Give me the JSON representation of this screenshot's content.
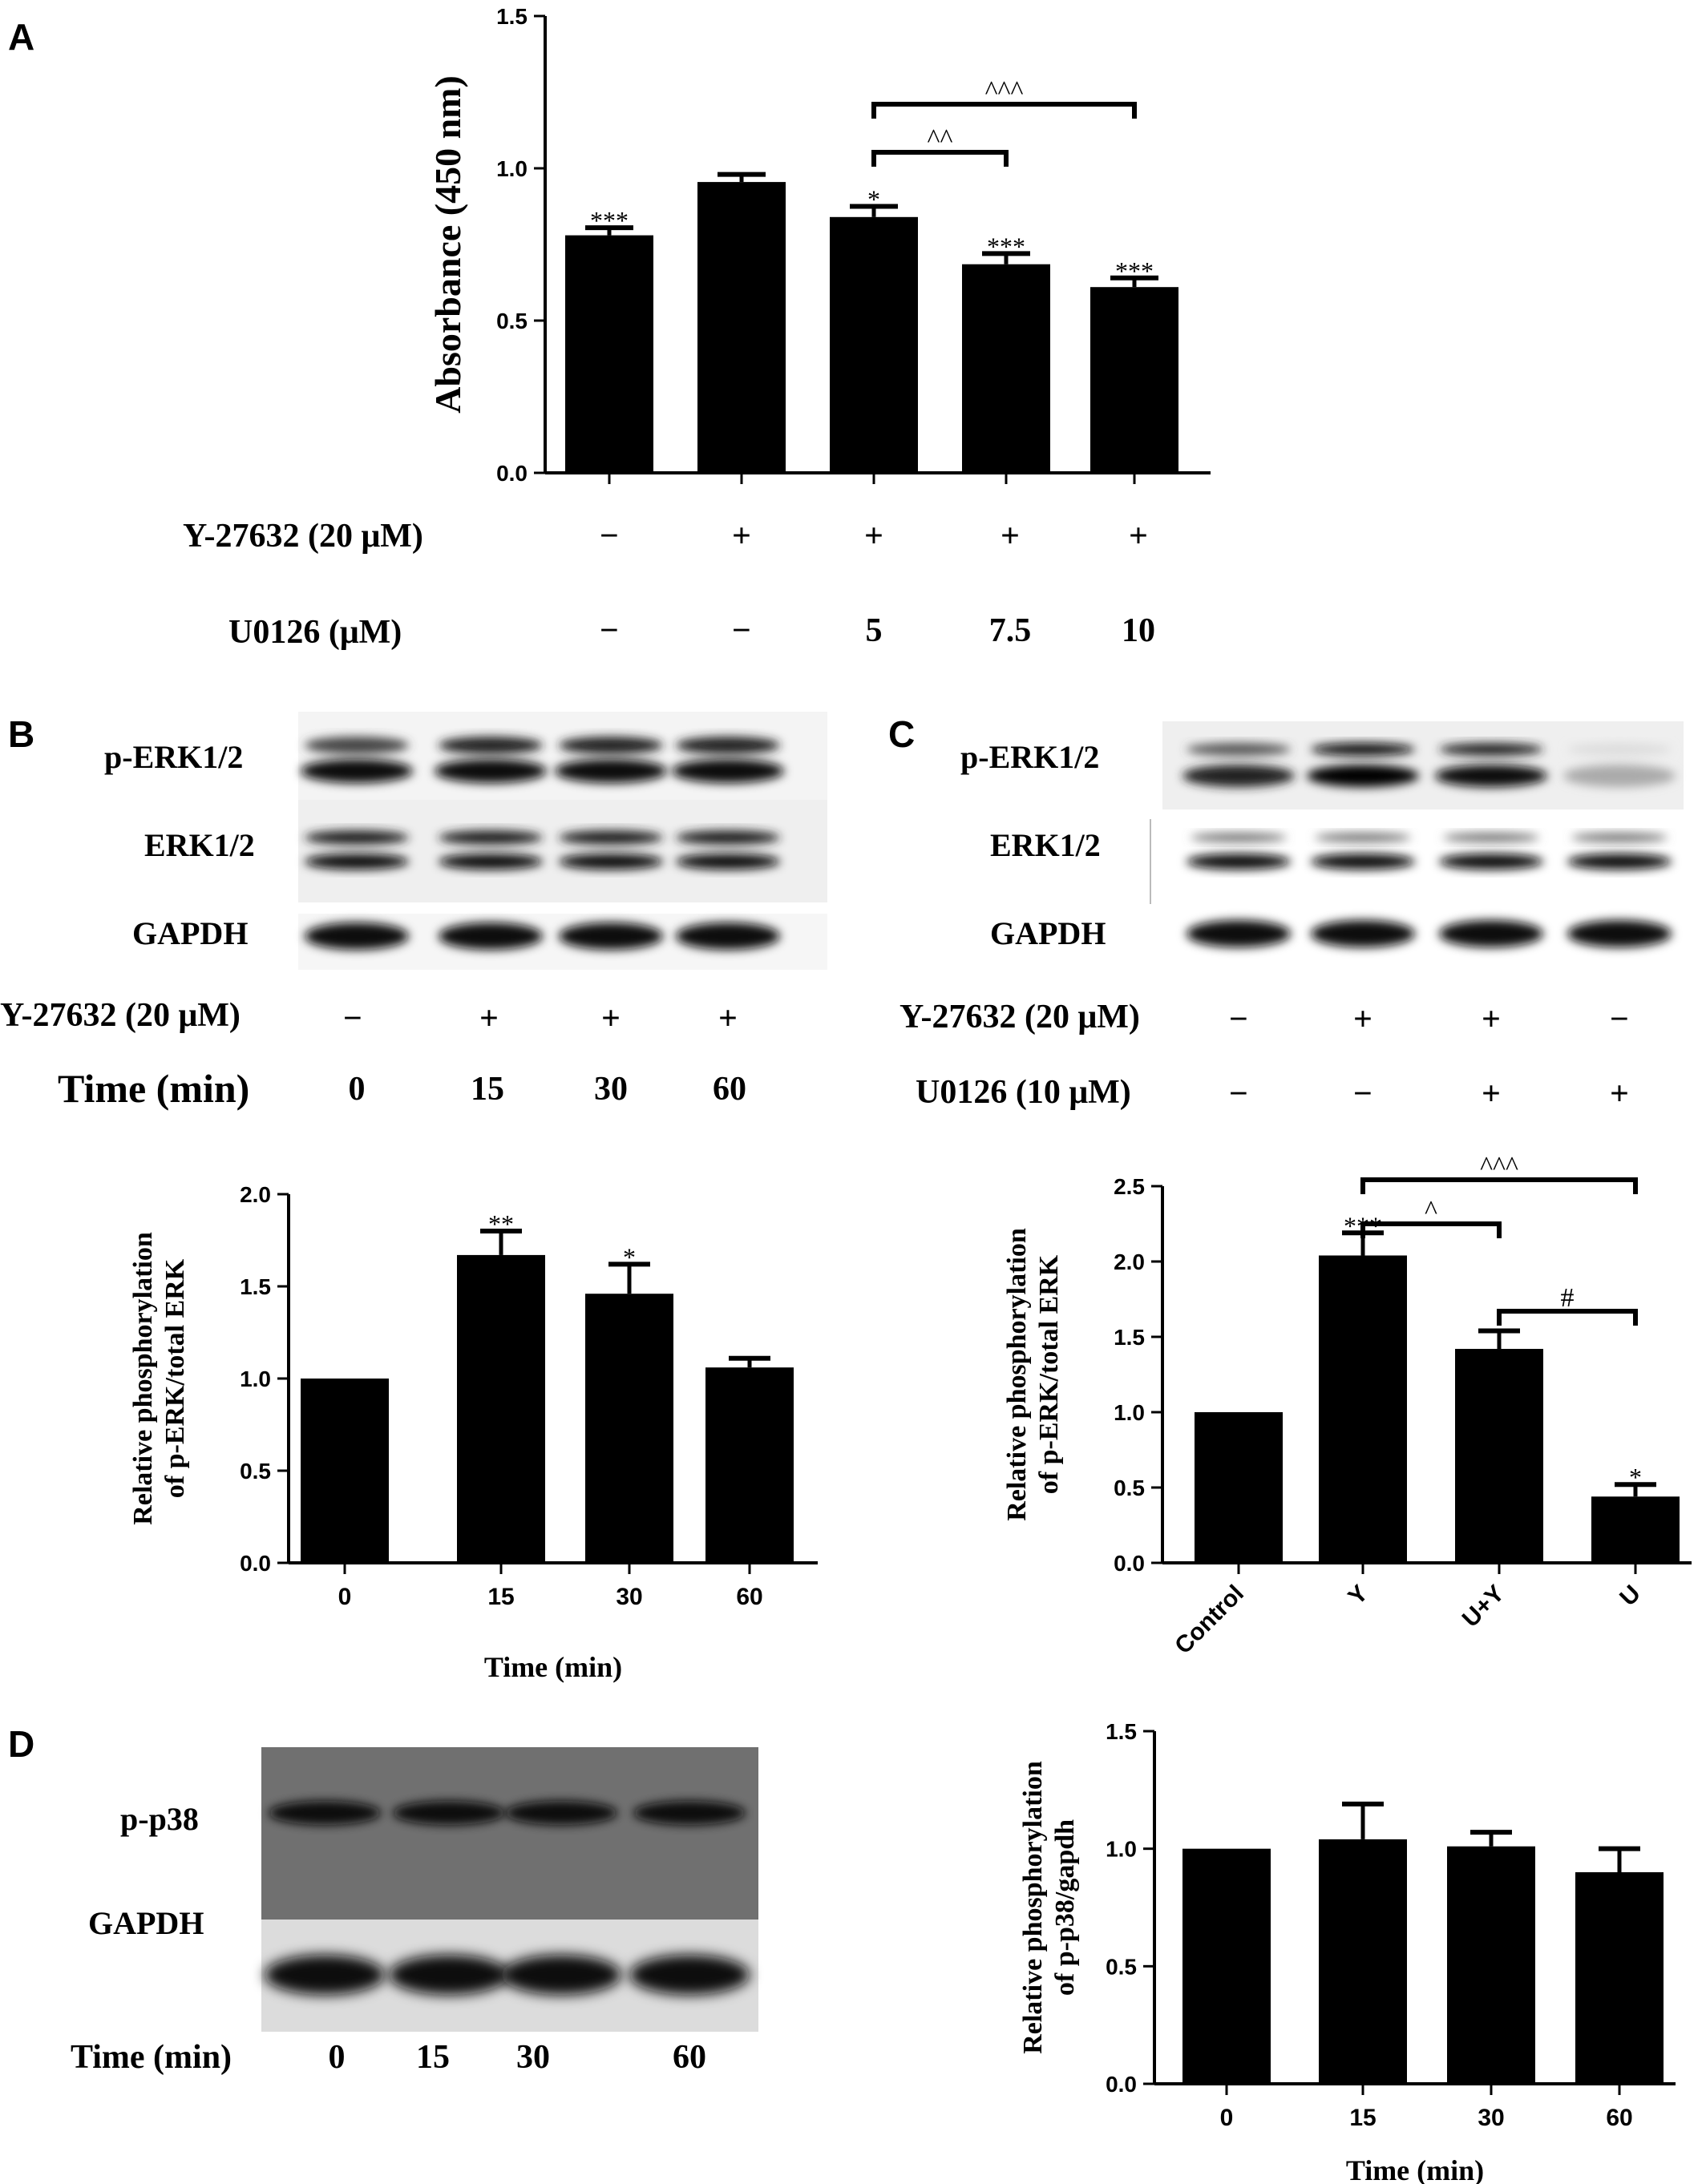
{
  "panels": {
    "A": {
      "letter": "A",
      "conditions": [
        {
          "label": "Y-27632 (20 μM)",
          "values": [
            "−",
            "+",
            "+",
            "+",
            "+"
          ]
        },
        {
          "label": "U0126 (μM)",
          "values": [
            "−",
            "−",
            "5",
            "7.5",
            "10"
          ]
        }
      ]
    },
    "B": {
      "letter": "B",
      "blot_labels": [
        "p-ERK1/2",
        "ERK1/2",
        "GAPDH"
      ],
      "conditions": [
        {
          "label": "Y-27632 (20 μM)",
          "values": [
            "−",
            "+",
            "+",
            "+"
          ]
        },
        {
          "label": "Time (min)",
          "values": [
            "0",
            "15",
            "30",
            "60"
          ]
        }
      ]
    },
    "C": {
      "letter": "C",
      "blot_labels": [
        "p-ERK1/2",
        "ERK1/2",
        "GAPDH"
      ],
      "conditions": [
        {
          "label": "Y-27632 (20 μM)",
          "values": [
            "−",
            "+",
            "+",
            "−"
          ]
        },
        {
          "label": "U0126 (10 μM)",
          "values": [
            "−",
            "−",
            "+",
            "+"
          ]
        }
      ]
    },
    "D": {
      "letter": "D",
      "blot_labels": [
        "p-p38",
        "GAPDH"
      ],
      "time_label": "Time  (min)",
      "time_values": [
        "0",
        "15",
        "30",
        "60"
      ]
    }
  },
  "chart_data": [
    {
      "id": "A",
      "type": "bar",
      "title": "",
      "xlabel": "",
      "ylabel": "Absorbance (450 nm)",
      "categories": [
        "",
        "",
        "",
        "",
        ""
      ],
      "values": [
        0.78,
        0.955,
        0.84,
        0.685,
        0.61
      ],
      "errors": [
        0.025,
        0.025,
        0.035,
        0.035,
        0.03
      ],
      "ylim": [
        0,
        1.5
      ],
      "yticks": [
        "0.0",
        "0.5",
        "1.0",
        "1.5"
      ],
      "sig_labels": [
        "***",
        "",
        "*",
        "***",
        "***"
      ],
      "brackets": [
        {
          "from": 2,
          "to": 3,
          "label": "^^"
        },
        {
          "from": 2,
          "to": 4,
          "label": "^^^"
        }
      ]
    },
    {
      "id": "B",
      "type": "bar",
      "title": "",
      "xlabel": "Time (min)",
      "ylabel": [
        "Relative  phosphorylation",
        "of p-ERK/total ERK"
      ],
      "categories": [
        "0",
        "15",
        "30",
        "60"
      ],
      "values": [
        1.0,
        1.67,
        1.46,
        1.06
      ],
      "errors": [
        0.0,
        0.13,
        0.16,
        0.05
      ],
      "ylim": [
        0,
        2.0
      ],
      "yticks": [
        "0.0",
        "0.5",
        "1.0",
        "1.5",
        "2.0"
      ],
      "sig_labels": [
        "",
        "**",
        "*",
        ""
      ],
      "brackets": []
    },
    {
      "id": "C",
      "type": "bar",
      "title": "",
      "xlabel": "",
      "ylabel": [
        "Relative  phosphorylation",
        "of p-ERK/total ERK"
      ],
      "categories": [
        "Control",
        "Y",
        "U+Y",
        "U"
      ],
      "values": [
        1.0,
        2.04,
        1.42,
        0.44
      ],
      "errors": [
        0.0,
        0.15,
        0.12,
        0.08
      ],
      "ylim": [
        0,
        2.5
      ],
      "yticks": [
        "0.0",
        "0.5",
        "1.0",
        "1.5",
        "2.0",
        "2.5"
      ],
      "sig_labels": [
        "",
        "***",
        "",
        "*"
      ],
      "brackets": [
        {
          "from": 1,
          "to": 2,
          "label": "^"
        },
        {
          "from": 1,
          "to": 3,
          "label": "^^^"
        },
        {
          "from": 2,
          "to": 3,
          "label": "#"
        }
      ]
    },
    {
      "id": "D",
      "type": "bar",
      "title": "",
      "xlabel": "Time (min)",
      "ylabel": [
        "Relative phosphorylation",
        "of p-p38/gapdh"
      ],
      "categories": [
        "0",
        "15",
        "30",
        "60"
      ],
      "values": [
        1.0,
        1.04,
        1.01,
        0.9
      ],
      "errors": [
        0.0,
        0.15,
        0.06,
        0.1
      ],
      "ylim": [
        0,
        1.5
      ],
      "yticks": [
        "0.0",
        "0.5",
        "1.0",
        "1.5"
      ],
      "sig_labels": [
        "",
        "",
        "",
        ""
      ],
      "brackets": []
    }
  ]
}
